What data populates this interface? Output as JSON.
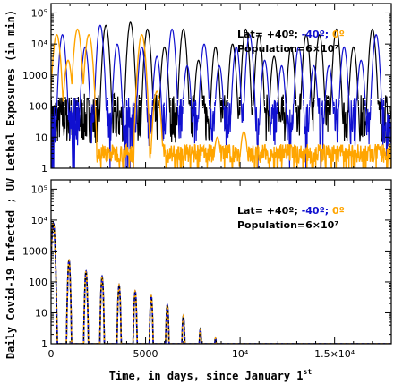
{
  "chart_data": [
    {
      "type": "line",
      "title": "",
      "ylabel_shared": "Daily Covid-19 Infected ; UV Lethal Exposures (in min)",
      "ylabel_part": "UV Lethal Exposures (in min)",
      "xlabel": "",
      "xlim": [
        0,
        18000
      ],
      "ylim": [
        1,
        200000
      ],
      "yscale": "log",
      "yticks": [
        "1",
        "10",
        "100",
        "1000",
        "10⁴",
        "10⁵"
      ],
      "xticks": [],
      "annotation": {
        "lat_prefix": "Lat= +40º;",
        "lat_south": "-40º;",
        "lat_equator": "0º",
        "population": "Population=6×10⁷"
      },
      "colors": {
        "north": "#000000",
        "south": "#1010d0",
        "equator": "#ffa500"
      },
      "series": [
        {
          "key": "north",
          "color": "#000000",
          "peaks_x": [
            2900,
            4200,
            5100,
            6000,
            7000,
            7800,
            8700,
            9600,
            10300,
            11000,
            11800,
            12700,
            13500,
            14200,
            15100,
            16000,
            17000
          ],
          "peaks_y": [
            40000,
            50000,
            30000,
            8000,
            30000,
            3000,
            8000,
            10000,
            30000,
            20000,
            4000,
            8000,
            20000,
            20000,
            30000,
            8000,
            30000
          ]
        },
        {
          "key": "south",
          "color": "#1010d0",
          "peaks_x": [
            600,
            1800,
            2600,
            3500,
            4800,
            5600,
            6400,
            7200,
            8100,
            8900,
            9800,
            10500,
            11300,
            12200,
            13100,
            13900,
            14700,
            15500,
            16400,
            17200
          ],
          "peaks_y": [
            20000,
            8000,
            40000,
            10000,
            8000,
            4000,
            30000,
            2000,
            10000,
            2000,
            8000,
            20000,
            3000,
            2000,
            8000,
            2000,
            2000,
            8000,
            3000,
            20000
          ]
        },
        {
          "key": "equator",
          "color": "#ffa500",
          "peaks_x": [
            300,
            900,
            1400,
            2000,
            4800,
            5600,
            8800,
            10200
          ],
          "peaks_y": [
            20000,
            3000,
            30000,
            20000,
            20000,
            300,
            10,
            15
          ]
        }
      ]
    },
    {
      "type": "line",
      "title": "",
      "ylabel_part": "Daily Covid-19 Infected",
      "xlabel": "Time, in days, since January 1",
      "xlabel_sup": "st",
      "xlim": [
        0,
        18000
      ],
      "ylim": [
        1,
        200000
      ],
      "yscale": "log",
      "yticks": [
        "1",
        "10",
        "100",
        "1000",
        "10⁴",
        "10⁵"
      ],
      "xticks": [
        {
          "value": 0,
          "label": "0"
        },
        {
          "value": 5000,
          "label": "5000"
        },
        {
          "value": 10000,
          "label": "10⁴"
        },
        {
          "value": 15000,
          "label": "1.5×10⁴"
        }
      ],
      "annotation": {
        "lat_prefix": "Lat= +40º;",
        "lat_south": "-40º;",
        "lat_equator": "0º",
        "population": "Population=6×10⁷"
      },
      "series": [
        {
          "key": "infected",
          "colors": [
            "#000000",
            "#1010d0",
            "#ffa500"
          ],
          "peaks_x": [
            120,
            950,
            1850,
            2700,
            3600,
            4450,
            5300,
            6150,
            7000,
            7900,
            8700
          ],
          "peaks_y": [
            8000,
            500,
            220,
            150,
            80,
            50,
            35,
            18,
            8,
            3,
            1.5
          ]
        }
      ]
    }
  ]
}
